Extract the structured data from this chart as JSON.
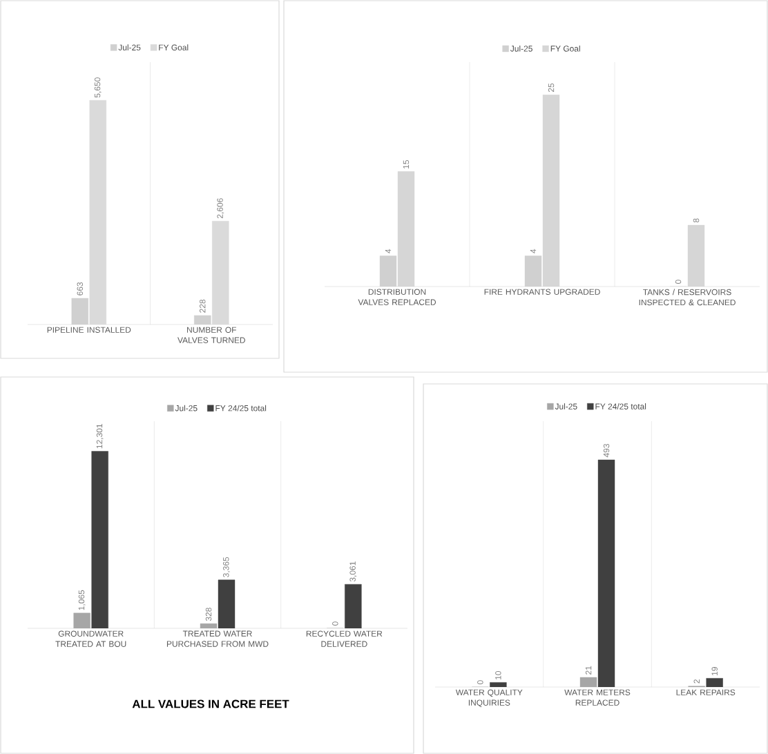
{
  "chart_data": [
    {
      "type": "bar",
      "categories": [
        "PIPELINE INSTALLED",
        "NUMBER OF VALVES TURNED"
      ],
      "series": [
        {
          "name": "Jul-25",
          "color": "#d0d0d0",
          "values": [
            663,
            228
          ],
          "value_labels": [
            "663",
            "228"
          ]
        },
        {
          "name": "FY Goal",
          "color": "#dadada",
          "values": [
            5650,
            2606
          ],
          "value_labels": [
            "5,650",
            "2,606"
          ]
        }
      ],
      "legend": "top",
      "grid": "x"
    },
    {
      "type": "bar",
      "categories": [
        "DISTRIBUTION VALVES REPLACED",
        "FIRE HYDRANTS UPGRADED",
        "TANKS / RESERVOIRS INSPECTED & CLEANED"
      ],
      "series": [
        {
          "name": "Jul-25",
          "color": "#d0d0d0",
          "values": [
            4,
            4,
            0
          ],
          "value_labels": [
            "4",
            "4",
            "0"
          ]
        },
        {
          "name": "FY Goal",
          "color": "#d6d6d6",
          "values": [
            15,
            25,
            8
          ],
          "value_labels": [
            "15",
            "25",
            "8"
          ]
        }
      ],
      "legend": "top",
      "grid": "x"
    },
    {
      "type": "bar",
      "categories": [
        "GROUNDWATER TREATED AT BOU",
        "TREATED WATER PURCHASED FROM MWD",
        "RECYCLED WATER DELIVERED"
      ],
      "series": [
        {
          "name": "Jul-25",
          "color": "#a6a6a6",
          "values": [
            1065,
            328,
            0
          ],
          "value_labels": [
            "1,065",
            "328",
            "0"
          ]
        },
        {
          "name": "FY 24/25 total",
          "color": "#404040",
          "values": [
            12301,
            3365,
            3061
          ],
          "value_labels": [
            "12,301",
            "3,365",
            "3,061"
          ]
        }
      ],
      "legend": "top",
      "grid": "x",
      "annotations": [
        "ALL VALUES IN ACRE FEET"
      ]
    },
    {
      "type": "bar",
      "categories": [
        "WATER QUALITY INQUIRIES",
        "WATER METERS REPLACED",
        "LEAK REPAIRS"
      ],
      "series": [
        {
          "name": "Jul-25",
          "color": "#a6a6a6",
          "values": [
            0,
            21,
            2
          ],
          "value_labels": [
            "0",
            "21",
            "2"
          ]
        },
        {
          "name": "FY 24/25 total",
          "color": "#404040",
          "values": [
            10,
            493,
            19
          ],
          "value_labels": [
            "10",
            "493",
            "19"
          ]
        }
      ],
      "legend": "top",
      "grid": "x"
    }
  ]
}
